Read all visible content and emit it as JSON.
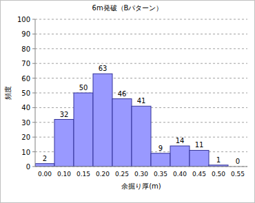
{
  "chart_data": {
    "type": "bar",
    "title": "6m発破（Bパターン）",
    "x_label": "余掘り厚(m)",
    "y_label": "頻度",
    "categories": [
      "0.00",
      "0.10",
      "0.15",
      "0.20",
      "0.25",
      "0.30",
      "0.35",
      "0.40",
      "0.45",
      "0.50",
      "0.55"
    ],
    "values": [
      2,
      32,
      50,
      63,
      46,
      41,
      9,
      14,
      11,
      1,
      0
    ],
    "color": "#9999ff",
    "ylim": [
      0,
      100
    ],
    "yticks": [
      0,
      10,
      20,
      30,
      40,
      50,
      60,
      70,
      80,
      90,
      100
    ],
    "grid": true,
    "data_labels": true
  }
}
